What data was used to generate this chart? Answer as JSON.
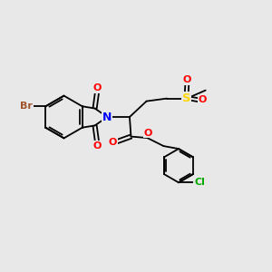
{
  "bg_color": "#e8e8e8",
  "bond_color": "#000000",
  "atom_colors": {
    "Br": "#A0522D",
    "N": "#0000FF",
    "O": "#FF0000",
    "S": "#FFD700",
    "Cl": "#00AA00",
    "C": "#000000"
  }
}
